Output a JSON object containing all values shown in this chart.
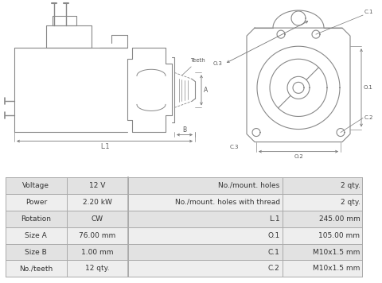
{
  "bg_color": "#ffffff",
  "table_row_bg1": "#e2e2e2",
  "table_row_bg2": "#eeeeee",
  "table_border": "#aaaaaa",
  "diagram_color": "#888888",
  "rows": [
    [
      "Voltage",
      "12 V",
      "No./mount. holes",
      "2 qty."
    ],
    [
      "Power",
      "2.20 kW",
      "No./mount. holes with thread",
      "2 qty."
    ],
    [
      "Rotation",
      "CW",
      "L.1",
      "245.00 mm"
    ],
    [
      "Size A",
      "76.00 mm",
      "O.1",
      "105.00 mm"
    ],
    [
      "Size B",
      "1.00 mm",
      "C.1",
      "M10x1.5 mm"
    ],
    [
      "No./teeth",
      "12 qty.",
      "C.2",
      "M10x1.5 mm"
    ]
  ]
}
